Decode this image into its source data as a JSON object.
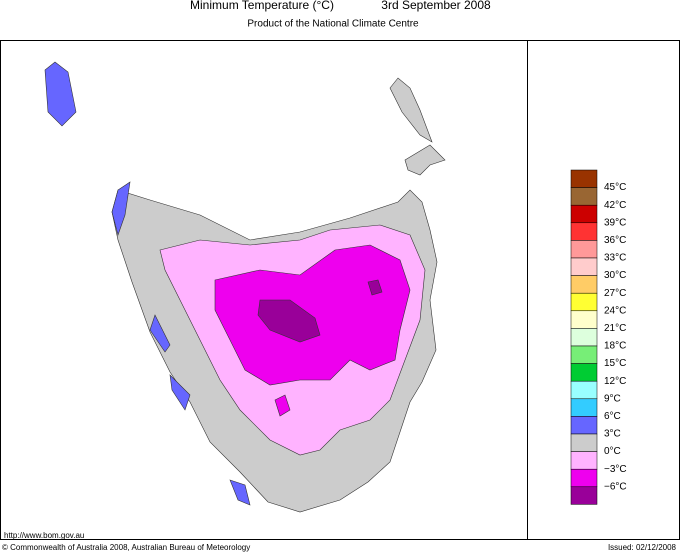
{
  "header": {
    "title": "Minimum Temperature (°C)",
    "date": "3rd September 2008",
    "subtitle": "Product of the National Climate Centre"
  },
  "legend": {
    "labels": [
      "45°C",
      "42°C",
      "39°C",
      "36°C",
      "33°C",
      "30°C",
      "27°C",
      "24°C",
      "21°C",
      "18°C",
      "15°C",
      "12°C",
      "9°C",
      "6°C",
      "3°C",
      "0°C",
      "−3°C",
      "−6°C"
    ],
    "colors": [
      "#993300",
      "#996633",
      "#cc0000",
      "#ff3333",
      "#ff9999",
      "#ffcccc",
      "#ffcc66",
      "#ffff33",
      "#ffffcc",
      "#ddffdd",
      "#77ee77",
      "#00cc33",
      "#99ffff",
      "#33ccff",
      "#6666ff",
      "#cccccc",
      "#ffb3ff",
      "#ee00ee",
      "#990099"
    ]
  },
  "footer": {
    "url": "http://www.bom.gov.au",
    "copyright": "© Commonwealth of Australia 2008, Australian Bureau of Meteorology",
    "issued": "Issued: 02/12/2008"
  }
}
